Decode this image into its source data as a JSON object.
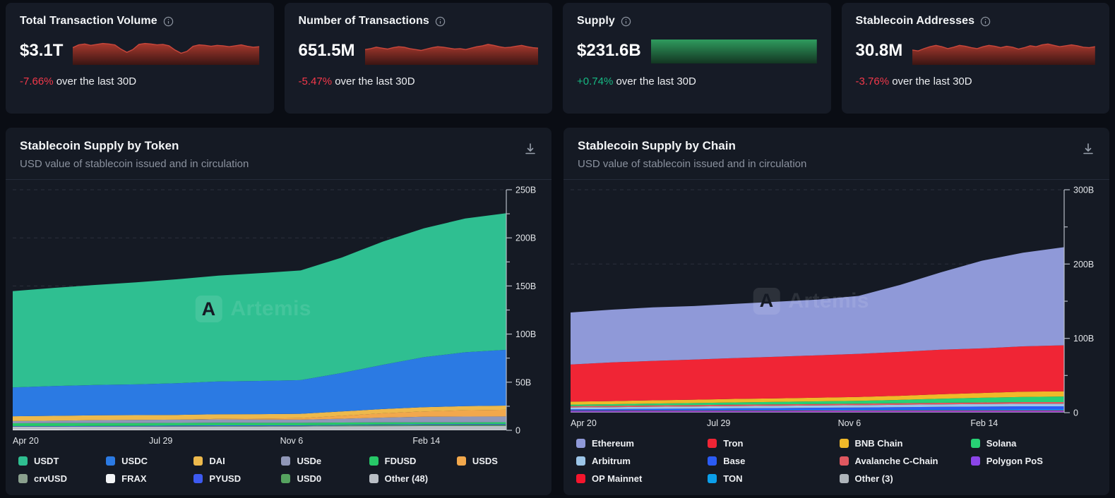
{
  "watermark": "Artemis",
  "colors": {
    "page_bg": "#0a0d14",
    "card_bg": "#161b26",
    "negative": "#f2384a",
    "positive": "#17b983",
    "spark_red_stroke": "#c8473b",
    "spark_red_fill_top": "#a8392e",
    "spark_red_fill_bottom": "#3a1513",
    "spark_green_top": "#2f9b5e",
    "spark_green_bottom": "#133522",
    "axis": "#b6bcc6",
    "tick_label": "#e2e5e9"
  },
  "stat_cards": [
    {
      "title": "Total Transaction Volume",
      "info_icon": "info-icon",
      "value": "$3.1T",
      "change": "-7.66%",
      "change_dir": "down",
      "suffix": " over the last 30D",
      "spark_type": "area-red",
      "spark": [
        68,
        80,
        84,
        78,
        82,
        86,
        84,
        80,
        62,
        48,
        60,
        82,
        86,
        84,
        80,
        82,
        76,
        58,
        44,
        52,
        74,
        80,
        78,
        74,
        78,
        76,
        72,
        76,
        80,
        74,
        70,
        72
      ]
    },
    {
      "title": "Number of Transactions",
      "info_icon": "info-icon",
      "value": "651.5M",
      "change": "-5.47%",
      "change_dir": "down",
      "suffix": " over the last 30D",
      "spark_type": "area-red",
      "spark": [
        60,
        64,
        70,
        66,
        62,
        68,
        72,
        70,
        64,
        60,
        56,
        62,
        68,
        72,
        70,
        66,
        62,
        64,
        60,
        66,
        72,
        76,
        82,
        78,
        72,
        68,
        70,
        74,
        78,
        72,
        68,
        66
      ]
    },
    {
      "title": "Supply",
      "info_icon": "info-icon",
      "value": "$231.6B",
      "change": "+0.74%",
      "change_dir": "up",
      "suffix": " over the last 30D",
      "spark_type": "bar-green",
      "spark": []
    },
    {
      "title": "Stablecoin Addresses",
      "info_icon": "info-icon",
      "value": "30.8M",
      "change": "-3.76%",
      "change_dir": "down",
      "suffix": " over the last 30D",
      "spark_type": "area-red",
      "spark": [
        58,
        54,
        64,
        72,
        78,
        72,
        64,
        70,
        78,
        74,
        68,
        64,
        72,
        78,
        74,
        68,
        74,
        70,
        62,
        68,
        76,
        72,
        80,
        84,
        78,
        72,
        76,
        80,
        76,
        70,
        68,
        72
      ]
    }
  ],
  "chart_data": [
    {
      "type": "area",
      "stacked": true,
      "title": "Stablecoin Supply by Token",
      "subtitle": "USD value of stablecoin issued and in circulation",
      "y_unit": "B",
      "ylim": [
        0,
        250
      ],
      "y_minor_step": 25,
      "grid": true,
      "legend_position": "bottom",
      "legend_cols": 6,
      "y_ticks": [
        {
          "v": 0,
          "label": "0"
        },
        {
          "v": 50,
          "label": "50B"
        },
        {
          "v": 100,
          "label": "100B"
        },
        {
          "v": 150,
          "label": "150B"
        },
        {
          "v": 200,
          "label": "200B"
        },
        {
          "v": 250,
          "label": "250B"
        }
      ],
      "x_ticks": [
        {
          "pos": 0.0,
          "label": "Apr 20"
        },
        {
          "pos": 0.3,
          "label": "Jul 29"
        },
        {
          "pos": 0.565,
          "label": "Nov 6"
        },
        {
          "pos": 0.838,
          "label": "Feb 14"
        }
      ],
      "legend": [
        {
          "label": "USDT",
          "color": "#2fbf91"
        },
        {
          "label": "USDC",
          "color": "#2b7ae3"
        },
        {
          "label": "DAI",
          "color": "#edb94c"
        },
        {
          "label": "USDe",
          "color": "#9097b8"
        },
        {
          "label": "FDUSD",
          "color": "#27c868"
        },
        {
          "label": "USDS",
          "color": "#f2a84c"
        },
        {
          "label": "crvUSD",
          "color": "#8aa08e"
        },
        {
          "label": "FRAX",
          "color": "#f2f4f6"
        },
        {
          "label": "PYUSD",
          "color": "#3d5af1"
        },
        {
          "label": "USD0",
          "color": "#55a25f"
        },
        {
          "label": "Other (48)",
          "color": "#b9bec5"
        }
      ],
      "stack_order": [
        "FRAX",
        "Other (48)",
        "crvUSD",
        "USD0",
        "PYUSD",
        "FDUSD",
        "USDe",
        "USDS",
        "DAI",
        "USDC",
        "USDT"
      ],
      "series": [
        {
          "name": "USDT",
          "values": [
            100,
            102,
            104,
            106,
            108,
            110,
            112,
            114,
            120,
            128,
            134,
            139,
            142
          ]
        },
        {
          "name": "USDC",
          "values": [
            30,
            31,
            31.5,
            32,
            33,
            34,
            34.5,
            35,
            40,
            46,
            52,
            56,
            58
          ]
        },
        {
          "name": "DAI",
          "values": [
            5,
            5,
            5,
            5,
            4.9,
            4.8,
            4.6,
            4.5,
            4.5,
            4.4,
            4.4,
            4.3,
            4.3
          ]
        },
        {
          "name": "USDe",
          "values": [
            2.3,
            2.5,
            3,
            3.2,
            3.4,
            3.5,
            3.4,
            3.3,
            4,
            5,
            5.8,
            6,
            5.9
          ]
        },
        {
          "name": "FDUSD",
          "values": [
            3,
            3.2,
            3.1,
            2.9,
            2.8,
            2.8,
            2.7,
            2.6,
            2.5,
            2.2,
            2,
            1.9,
            2
          ]
        },
        {
          "name": "USDS",
          "values": [
            0,
            0,
            0,
            0,
            0,
            0.5,
            1,
            1.6,
            3,
            4.5,
            5.5,
            6.5,
            7
          ]
        },
        {
          "name": "crvUSD",
          "values": [
            0.2,
            0.2,
            0.2,
            0.2,
            0.2,
            0.2,
            0.2,
            0.2,
            0.2,
            0.2,
            0.2,
            0.2,
            0.2
          ]
        },
        {
          "name": "FRAX",
          "values": [
            0.7,
            0.7,
            0.65,
            0.65,
            0.6,
            0.6,
            0.6,
            0.55,
            0.55,
            0.5,
            0.5,
            0.45,
            0.45
          ]
        },
        {
          "name": "PYUSD",
          "values": [
            0.4,
            0.4,
            0.5,
            0.6,
            0.7,
            0.7,
            0.6,
            0.5,
            0.5,
            0.6,
            0.7,
            0.75,
            0.8
          ]
        },
        {
          "name": "USD0",
          "values": [
            0,
            0,
            0,
            0.1,
            0.2,
            0.3,
            0.4,
            0.5,
            0.7,
            0.9,
            1,
            1,
            1
          ]
        },
        {
          "name": "Other (48)",
          "values": [
            3,
            3,
            3.1,
            3.1,
            3.2,
            3.3,
            3.3,
            3.4,
            3.6,
            3.8,
            3.9,
            4,
            4
          ]
        }
      ]
    },
    {
      "type": "area",
      "stacked": true,
      "title": "Stablecoin Supply by Chain",
      "subtitle": "USD value of stablecoin issued and in circulation",
      "y_unit": "B",
      "ylim": [
        0,
        300
      ],
      "y_minor_step": 50,
      "grid": true,
      "legend_position": "bottom",
      "legend_cols": 4,
      "y_ticks": [
        {
          "v": 0,
          "label": "0"
        },
        {
          "v": 100,
          "label": "100B"
        },
        {
          "v": 200,
          "label": "200B"
        },
        {
          "v": 300,
          "label": "300B"
        }
      ],
      "x_ticks": [
        {
          "pos": 0.0,
          "label": "Apr 20"
        },
        {
          "pos": 0.3,
          "label": "Jul 29"
        },
        {
          "pos": 0.565,
          "label": "Nov 6"
        },
        {
          "pos": 0.838,
          "label": "Feb 14"
        }
      ],
      "legend": [
        {
          "label": "Ethereum",
          "color": "#8f99d8"
        },
        {
          "label": "Tron",
          "color": "#f02535"
        },
        {
          "label": "BNB Chain",
          "color": "#f0b929"
        },
        {
          "label": "Solana",
          "color": "#27d175"
        },
        {
          "label": "Arbitrum",
          "color": "#9cc5e8"
        },
        {
          "label": "Base",
          "color": "#2b5cf5"
        },
        {
          "label": "Avalanche C-Chain",
          "color": "#e05860"
        },
        {
          "label": "Polygon PoS",
          "color": "#8b45e8"
        },
        {
          "label": "OP Mainnet",
          "color": "#f5152d"
        },
        {
          "label": "TON",
          "color": "#0b9fea"
        },
        {
          "label": "Other (3)",
          "color": "#aeb4ba"
        }
      ],
      "stack_order": [
        "Other (3)",
        "Polygon PoS",
        "OP Mainnet",
        "TON",
        "Base",
        "Arbitrum",
        "Avalanche C-Chain",
        "Solana",
        "BNB Chain",
        "Tron",
        "Ethereum"
      ],
      "series": [
        {
          "name": "Ethereum",
          "values": [
            70,
            71,
            72,
            72,
            73,
            74,
            75,
            78,
            90,
            104,
            118,
            126,
            132
          ]
        },
        {
          "name": "Tron",
          "values": [
            50,
            52,
            53,
            54,
            55,
            56,
            57,
            58,
            59,
            60,
            60,
            61,
            62
          ]
        },
        {
          "name": "BNB Chain",
          "values": [
            4,
            4.2,
            4.4,
            4.5,
            4.7,
            4.8,
            5,
            5.2,
            5.5,
            6,
            6.5,
            7,
            7
          ]
        },
        {
          "name": "Solana",
          "values": [
            2,
            2.2,
            2.4,
            2.7,
            3,
            3.2,
            3.5,
            3.8,
            4.5,
            5.5,
            6.2,
            7,
            7.5
          ]
        },
        {
          "name": "Arbitrum",
          "values": [
            2.5,
            2.6,
            2.7,
            2.8,
            2.9,
            3,
            3,
            3.1,
            3.2,
            3.3,
            3.4,
            3.5,
            3.5
          ]
        },
        {
          "name": "Base",
          "values": [
            1.5,
            1.7,
            2,
            2.2,
            2.4,
            2.6,
            2.9,
            3.1,
            3.4,
            3.7,
            4,
            4.2,
            4.2
          ]
        },
        {
          "name": "Avalanche C-Chain",
          "values": [
            1.8,
            1.8,
            1.9,
            1.9,
            2,
            2,
            2,
            2.1,
            2.1,
            2.2,
            2.2,
            2.2,
            2.2
          ]
        },
        {
          "name": "Polygon PoS",
          "values": [
            1.3,
            1.3,
            1.35,
            1.35,
            1.4,
            1.4,
            1.45,
            1.45,
            1.5,
            1.5,
            1.5,
            1.5,
            1.5
          ]
        },
        {
          "name": "OP Mainnet",
          "values": [
            0.6,
            0.6,
            0.6,
            0.6,
            0.6,
            0.6,
            0.6,
            0.6,
            0.6,
            0.6,
            0.6,
            0.6,
            0.6
          ]
        },
        {
          "name": "TON",
          "values": [
            0.3,
            0.4,
            0.5,
            0.6,
            0.7,
            0.8,
            0.9,
            1,
            1.1,
            1.2,
            1.3,
            1.4,
            1.4
          ]
        },
        {
          "name": "Other (3)",
          "values": [
            0.8,
            0.8,
            0.8,
            0.8,
            0.8,
            0.8,
            0.8,
            0.8,
            0.8,
            0.8,
            0.8,
            0.8,
            0.8
          ]
        }
      ]
    }
  ]
}
